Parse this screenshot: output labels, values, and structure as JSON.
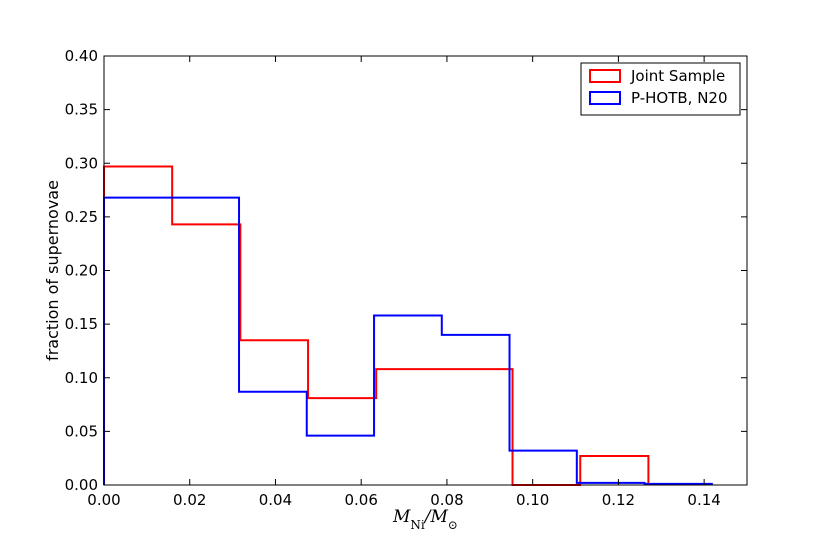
{
  "chart_data": {
    "type": "histogram-step",
    "xlabel": "M_Ni / M_⊙",
    "ylabel": "fraction of supernovae",
    "xlim": [
      0.0,
      0.15
    ],
    "ylim": [
      0.0,
      0.4
    ],
    "xticks": [
      "0.00",
      "0.02",
      "0.04",
      "0.06",
      "0.08",
      "0.10",
      "0.12",
      "0.14"
    ],
    "yticks": [
      "0.00",
      "0.05",
      "0.10",
      "0.15",
      "0.20",
      "0.25",
      "0.30",
      "0.35",
      "0.40"
    ],
    "grid": false,
    "legend_position": "top-right",
    "series": [
      {
        "name": "Joint Sample",
        "color": "#ff0000",
        "bin_edges": [
          0.0,
          0.0159,
          0.0318,
          0.0476,
          0.0635,
          0.0794,
          0.0953,
          0.1111,
          0.127
        ],
        "values": [
          0.297,
          0.243,
          0.135,
          0.081,
          0.108,
          0.108,
          0.0,
          0.027
        ]
      },
      {
        "name": "P-HOTB, N20",
        "color": "#0000ff",
        "bin_edges": [
          0.0,
          0.0158,
          0.0315,
          0.0473,
          0.063,
          0.0788,
          0.0946,
          0.1103,
          0.1261,
          0.1418
        ],
        "values": [
          0.268,
          0.268,
          0.087,
          0.046,
          0.158,
          0.14,
          0.032,
          0.002,
          0.001
        ]
      }
    ]
  }
}
